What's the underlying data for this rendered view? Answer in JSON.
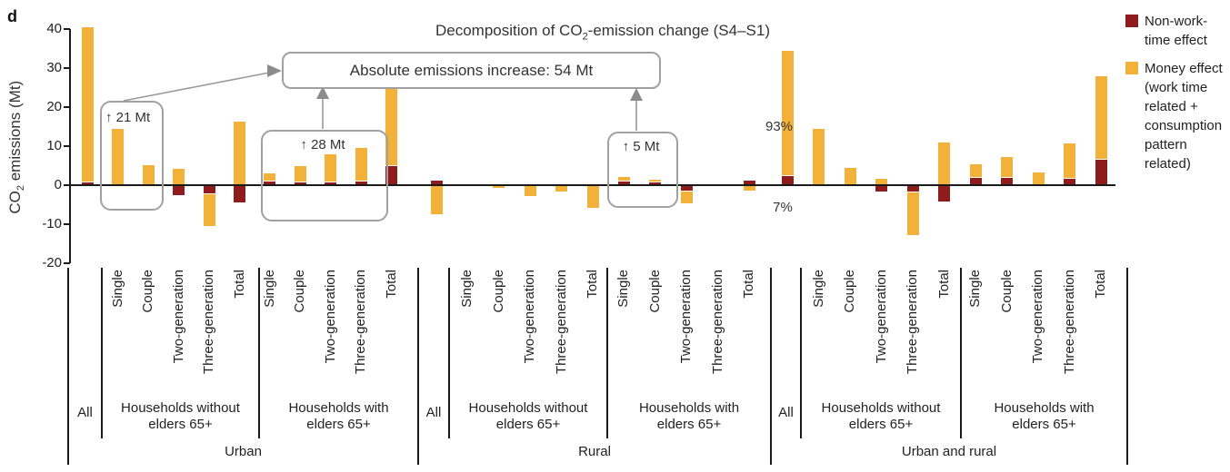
{
  "panel_label": "d",
  "title": {
    "pre": "Decomposition of CO",
    "sub": "2",
    "post": "-emission change (S4–S1)"
  },
  "y_axis": {
    "label_pre": "CO",
    "label_sub": "2",
    "label_post": " emissions (Mt)",
    "ticks": [
      40,
      30,
      20,
      10,
      0,
      -10,
      -20
    ]
  },
  "legend": {
    "items": [
      {
        "name": "non-work-time-effect",
        "color": "#8e1c1c",
        "lines": [
          "Non-work-",
          "time effect"
        ]
      },
      {
        "name": "money-effect",
        "color": "#f2b23a",
        "lines": [
          "Money effect",
          "(work time",
          "related +",
          "consumption",
          "pattern",
          "related)"
        ]
      }
    ]
  },
  "annotations": {
    "main_box_label": "Absolute emissions increase: 54 Mt",
    "box_21_label": "↑ 21 Mt",
    "box_28_label": "↑ 28 Mt",
    "box_5_label": "↑ 5 Mt",
    "percent_top": "93%",
    "percent_bottom": "7%"
  },
  "chart_data": {
    "type": "bar",
    "stacked": true,
    "unit": "Mt",
    "ylabel": "CO2 emissions (Mt)",
    "ylim": [
      -20,
      40
    ],
    "yticks": [
      -20,
      -10,
      0,
      10,
      20,
      30,
      40
    ],
    "legend_position": "top-right",
    "series_names": [
      "Non-work-time effect",
      "Money effect (work time related + consumption pattern related)"
    ],
    "series_colors": {
      "nonwork": "#8e1c1c",
      "money": "#f2b23a"
    },
    "regions": [
      {
        "label": "Urban",
        "groups": [
          {
            "label_lines": [
              "All"
            ],
            "bars": [
              {
                "category": "All",
                "nonwork": 0.7,
                "money": 39.8
              }
            ]
          },
          {
            "label_lines": [
              "Households without",
              "elders 65+"
            ],
            "bars": [
              {
                "category": "Single",
                "nonwork": 0,
                "money": 14.5
              },
              {
                "category": "Couple",
                "nonwork": 0,
                "money": 5.2
              },
              {
                "category": "Two-generation",
                "nonwork": -2.6,
                "money": 4.2
              },
              {
                "category": "Three-generation",
                "nonwork": -2.1,
                "money": -8.3
              },
              {
                "category": "Total",
                "nonwork": -4.4,
                "money": 16.3
              }
            ]
          },
          {
            "label_lines": [
              "Households with",
              "elders 65+"
            ],
            "bars": [
              {
                "category": "Single",
                "nonwork": 0.9,
                "money": 2.1
              },
              {
                "category": "Couple",
                "nonwork": 0.8,
                "money": 4.2
              },
              {
                "category": "Two-generation",
                "nonwork": 0.8,
                "money": 7.1
              },
              {
                "category": "Three-generation",
                "nonwork": 1.0,
                "money": 8.5
              },
              {
                "category": "Total",
                "nonwork": 4.8,
                "money": 23.0
              }
            ]
          }
        ]
      },
      {
        "label": "Rural",
        "groups": [
          {
            "label_lines": [
              "All"
            ],
            "bars": [
              {
                "category": "All",
                "nonwork": 1.2,
                "money": -7.4
              }
            ]
          },
          {
            "label_lines": [
              "Households without",
              "elders 65+"
            ],
            "bars": [
              {
                "category": "Single",
                "nonwork": 0,
                "money": 0
              },
              {
                "category": "Couple",
                "nonwork": 0,
                "money": -0.6
              },
              {
                "category": "Two-generation",
                "nonwork": 0,
                "money": -2.7
              },
              {
                "category": "Three-generation",
                "nonwork": 0,
                "money": -1.7
              },
              {
                "category": "Total",
                "nonwork": 0,
                "money": -5.7
              }
            ]
          },
          {
            "label_lines": [
              "Households with",
              "elders 65+"
            ],
            "bars": [
              {
                "category": "Single",
                "nonwork": 0.9,
                "money": 1.2
              },
              {
                "category": "Couple",
                "nonwork": 0.7,
                "money": 0.6
              },
              {
                "category": "Two-generation",
                "nonwork": -1.3,
                "money": -3.4
              },
              {
                "category": "Three-generation",
                "nonwork": 0,
                "money": 0
              },
              {
                "category": "Total",
                "nonwork": 1.2,
                "money": -1.5
              }
            ]
          }
        ]
      },
      {
        "label": "Urban and rural",
        "groups": [
          {
            "label_lines": [
              "All"
            ],
            "bars": [
              {
                "category": "All",
                "nonwork": 2.3,
                "money": 32.2,
                "share_labels": [
                  "93%",
                  "7%"
                ]
              }
            ]
          },
          {
            "label_lines": [
              "Households without",
              "elders 65+"
            ],
            "bars": [
              {
                "category": "Single",
                "nonwork": 0,
                "money": 14.5
              },
              {
                "category": "Couple",
                "nonwork": 0,
                "money": 4.5
              },
              {
                "category": "Two-generation",
                "nonwork": -1.6,
                "money": 1.6
              },
              {
                "category": "Three-generation",
                "nonwork": -1.7,
                "money": -11.0
              },
              {
                "category": "Total",
                "nonwork": -4.3,
                "money": 11.0
              }
            ]
          },
          {
            "label_lines": [
              "Households with",
              "elders 65+"
            ],
            "bars": [
              {
                "category": "Single",
                "nonwork": 1.9,
                "money": 3.5
              },
              {
                "category": "Couple",
                "nonwork": 1.9,
                "money": 5.3
              },
              {
                "category": "Two-generation",
                "nonwork": 0,
                "money": 3.3
              },
              {
                "category": "Three-generation",
                "nonwork": 1.6,
                "money": 9.0
              },
              {
                "category": "Total",
                "nonwork": 6.5,
                "money": 21.5
              }
            ]
          }
        ]
      }
    ]
  }
}
